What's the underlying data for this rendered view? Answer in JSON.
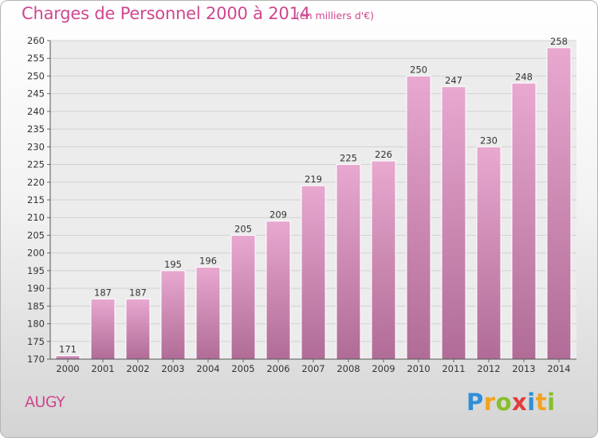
{
  "header": {
    "title": "Charges de Personnel 2000 à 2014",
    "subtitle": "(en milliers d'€)"
  },
  "footer": {
    "commune": "AUGY",
    "logo_letters": [
      "P",
      "r",
      "o",
      "x",
      "i",
      "t",
      "i"
    ]
  },
  "colors": {
    "title": "#d0468f",
    "bar_top": "#e8a8d0",
    "bar_bottom": "#b06c96"
  },
  "chart_data": {
    "type": "bar",
    "categories": [
      "2000",
      "2001",
      "2002",
      "2003",
      "2004",
      "2005",
      "2006",
      "2007",
      "2008",
      "2009",
      "2010",
      "2011",
      "2012",
      "2013",
      "2014"
    ],
    "values": [
      171,
      187,
      187,
      195,
      196,
      205,
      209,
      219,
      225,
      226,
      250,
      247,
      230,
      248,
      258
    ],
    "data_labels": [
      "171",
      "187",
      "187",
      "195",
      "196",
      "205",
      "209",
      "219",
      "225",
      "226",
      "250",
      "247",
      "230",
      "248",
      "258"
    ],
    "y_ticks": [
      "170",
      "175",
      "180",
      "185",
      "190",
      "195",
      "200",
      "205",
      "210",
      "215",
      "220",
      "225",
      "230",
      "235",
      "240",
      "245",
      "250",
      "255",
      "260"
    ],
    "ylim": [
      170,
      260
    ],
    "grid": true,
    "legend": "none"
  }
}
